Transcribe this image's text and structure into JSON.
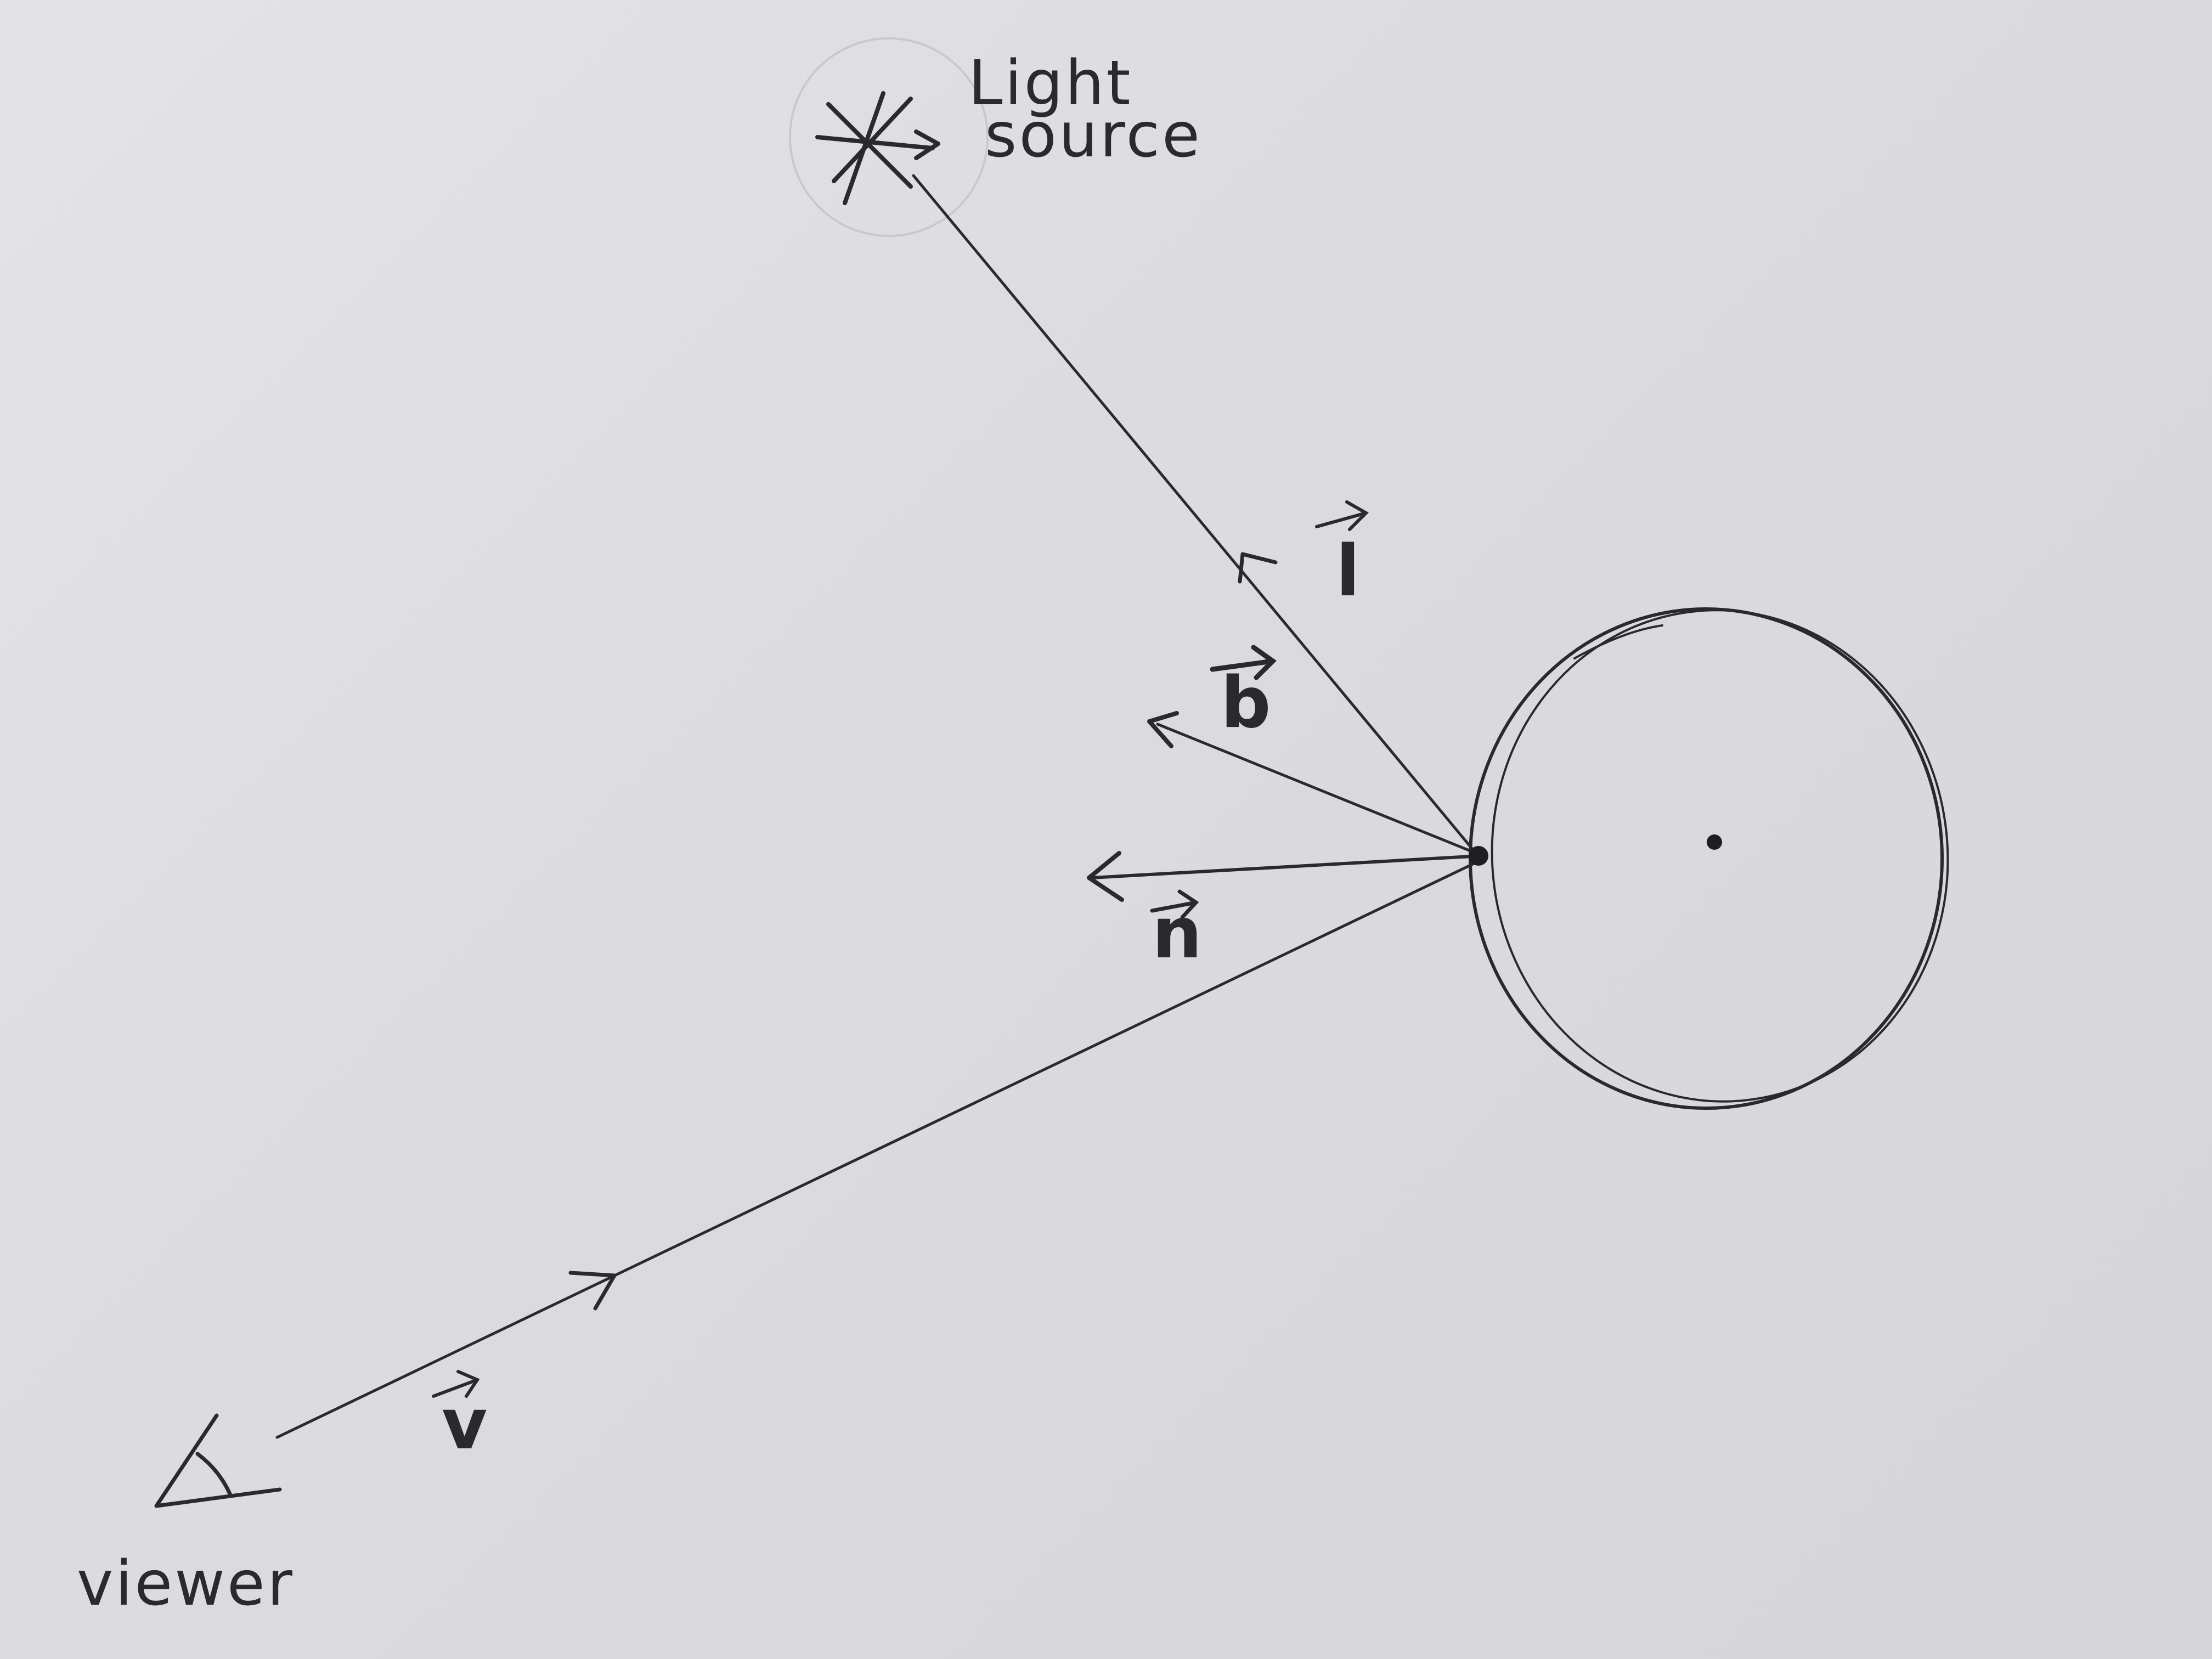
{
  "labels": {
    "light": "Light",
    "source": "source",
    "viewer": "viewer"
  },
  "vectors": {
    "l": "l",
    "b": "b",
    "n": "n",
    "v": "v"
  },
  "colors": {
    "ink": "#2a2a2e",
    "paper": "#dcdcdf"
  }
}
